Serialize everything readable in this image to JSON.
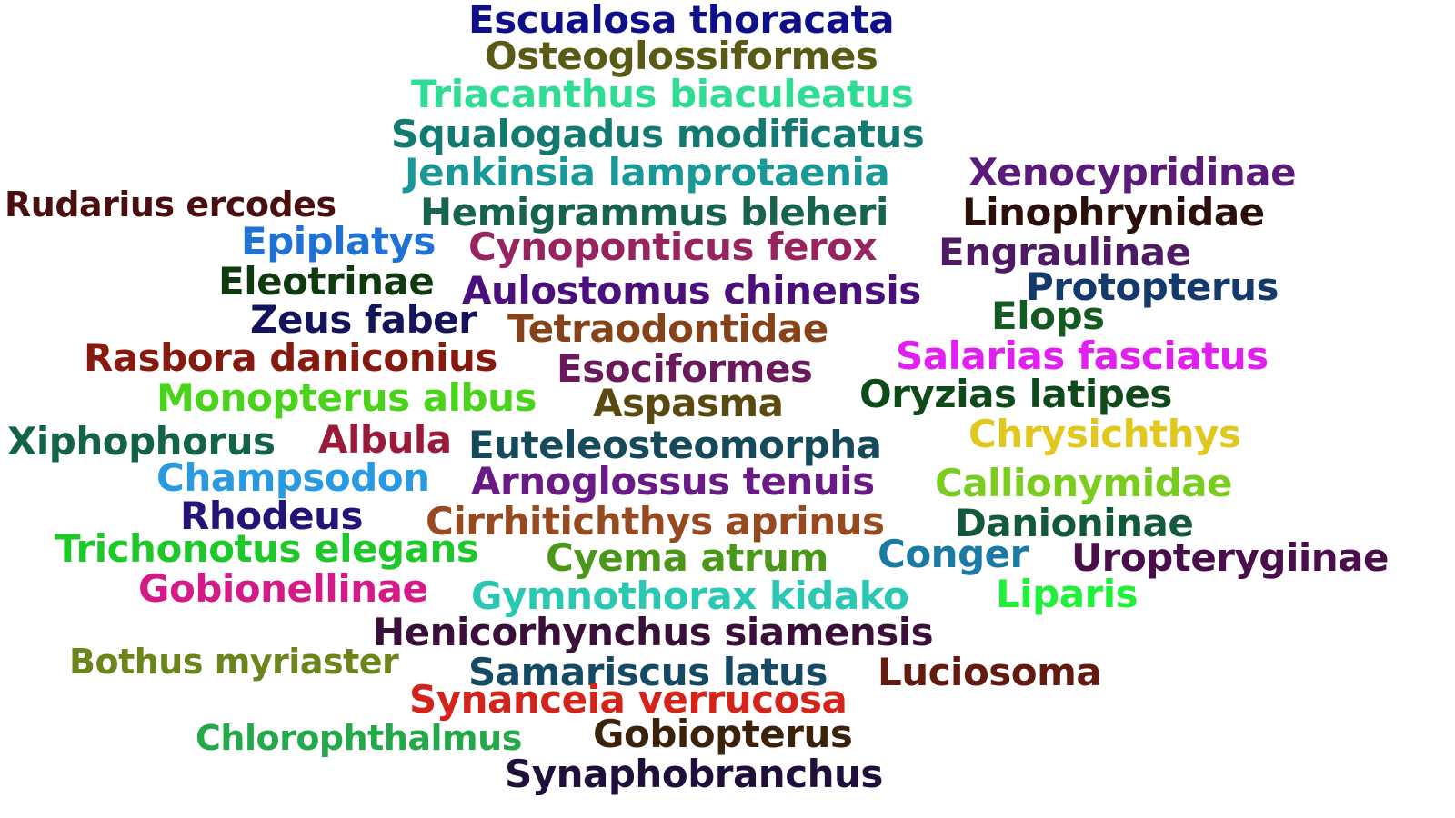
{
  "words": [
    {
      "text": "Escualosa thoracata",
      "color": "#0f0f8a"
    },
    {
      "text": "Osteoglossiformes",
      "color": "#5a5a14"
    },
    {
      "text": "Triacanthus biaculeatus",
      "color": "#2fdc93"
    },
    {
      "text": "Squalogadus modificatus",
      "color": "#137a72"
    },
    {
      "text": "Jenkinsia lamprotaenia",
      "color": "#1a9797"
    },
    {
      "text": "Xenocypridinae",
      "color": "#5a1a7a"
    },
    {
      "text": "Rudarius ercodes",
      "color": "#4a0f0f"
    },
    {
      "text": "Hemigrammus bleheri",
      "color": "#17634f"
    },
    {
      "text": "Linophrynidae",
      "color": "#2a0f0a"
    },
    {
      "text": "Epiplatys",
      "color": "#1f72d3"
    },
    {
      "text": "Cynoponticus ferox",
      "color": "#97235f"
    },
    {
      "text": "Engraulinae",
      "color": "#4d1a63"
    },
    {
      "text": "Eleotrinae",
      "color": "#0f3a0f"
    },
    {
      "text": "Aulostomus chinensis",
      "color": "#4a0f7a"
    },
    {
      "text": "Protopterus",
      "color": "#133a6a"
    },
    {
      "text": "Zeus faber",
      "color": "#14145a"
    },
    {
      "text": "Elops",
      "color": "#145a23"
    },
    {
      "text": "Tetraodontidae",
      "color": "#86431a"
    },
    {
      "text": "Rasbora daniconius",
      "color": "#861a0f"
    },
    {
      "text": "Salarias fasciatus",
      "color": "#e01ff0"
    },
    {
      "text": "Esociformes",
      "color": "#6a1a5a"
    },
    {
      "text": "Oryzias latipes",
      "color": "#0f4a1a"
    },
    {
      "text": "Monopterus albus",
      "color": "#4ad31a"
    },
    {
      "text": "Aspasma",
      "color": "#5a4a0f"
    },
    {
      "text": "Xiphophorus",
      "color": "#13634a"
    },
    {
      "text": "Albula",
      "color": "#9a1a3a"
    },
    {
      "text": "Euteleosteomorpha",
      "color": "#144a5a"
    },
    {
      "text": "Chrysichthys",
      "color": "#e0c81f"
    },
    {
      "text": "Champsodon",
      "color": "#2a9ae0"
    },
    {
      "text": "Arnoglossus tenuis",
      "color": "#6a1a86"
    },
    {
      "text": "Callionymidae",
      "color": "#7acc1f"
    },
    {
      "text": "Rhodeus",
      "color": "#23147a"
    },
    {
      "text": "Cirrhitichthys aprinus",
      "color": "#974a1f"
    },
    {
      "text": "Danioninae",
      "color": "#135a3a"
    },
    {
      "text": "Trichonotus elegans",
      "color": "#1fc82a"
    },
    {
      "text": "Cyema atrum",
      "color": "#4a971a"
    },
    {
      "text": "Conger",
      "color": "#1a7aa3"
    },
    {
      "text": "Uropterygiinae",
      "color": "#4a0f4a"
    },
    {
      "text": "Gobionellinae",
      "color": "#d31a86"
    },
    {
      "text": "Gymnothorax kidako",
      "color": "#2ac8b3"
    },
    {
      "text": "Liparis",
      "color": "#1ff03a"
    },
    {
      "text": "Henicorhynchus siamensis",
      "color": "#3a0f3a"
    },
    {
      "text": "Bothus myriaster",
      "color": "#6a861a"
    },
    {
      "text": "Samariscus latus",
      "color": "#144a63"
    },
    {
      "text": "Luciosoma",
      "color": "#631a0f"
    },
    {
      "text": "Synanceia verrucosa",
      "color": "#d3231a"
    },
    {
      "text": "Chlorophthalmus",
      "color": "#23a84a"
    },
    {
      "text": "Gobiopterus",
      "color": "#3a230a"
    },
    {
      "text": "Synaphobranchus",
      "color": "#1f0f3a"
    }
  ]
}
